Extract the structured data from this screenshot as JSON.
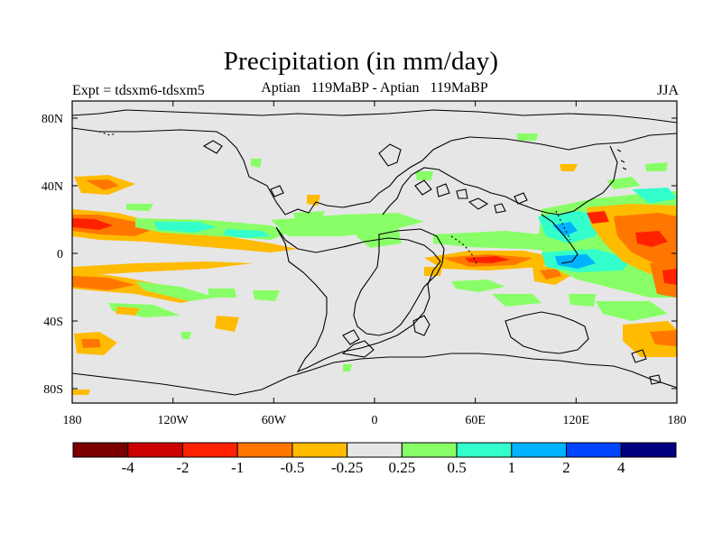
{
  "title": "Precipitation (in mm/day)",
  "experiment_label": "Expt = tdsxm6-tdsxm5",
  "comparison_label": "Aptian   119MaBP - Aptian   119MaBP",
  "season_label": "JJA",
  "axes": {
    "x_ticks": [
      "180",
      "120W",
      "60W",
      "0",
      "60E",
      "120E",
      "180"
    ],
    "y_ticks": [
      "80N",
      "40N",
      "0",
      "40S",
      "80S"
    ]
  },
  "colorbar": {
    "colors": [
      "#7a0000",
      "#cc0000",
      "#ff2200",
      "#ff7700",
      "#ffbb00",
      "#e6e6e6",
      "#88ff66",
      "#33ffcc",
      "#00b2ff",
      "#0044ff",
      "#000080"
    ],
    "labels": [
      "-4",
      "-2",
      "-1",
      "-0.5",
      "-0.25",
      "0.25",
      "0.5",
      "1",
      "2",
      "4"
    ]
  },
  "colors": {
    "background": "#e6e6e6",
    "coast": "#000000"
  }
}
